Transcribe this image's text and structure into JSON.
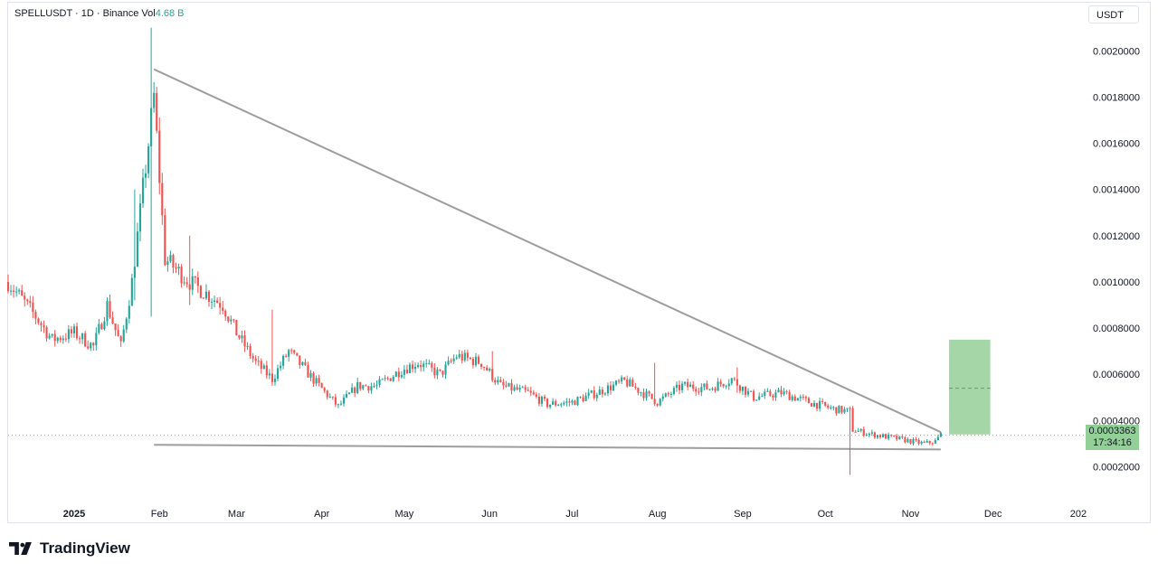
{
  "header": {
    "symbol_line": "SPELLUSDT · 1D · Binance",
    "vol_label": "Vol",
    "vol_value": "4.68 B"
  },
  "currency_button": "USDT",
  "last_price": {
    "price": "0.0003363",
    "countdown": "17:34:16"
  },
  "brand": {
    "name": "TradingView"
  },
  "colors": {
    "up": "#26a69a",
    "down": "#ef5350",
    "trendline": "#9e9e9e",
    "target_box": "#a5d6a7",
    "price_tag": "#92d098",
    "grid_text": "#131722"
  },
  "chart_data": {
    "type": "candlestick",
    "title": "",
    "xlabel": "",
    "ylabel": "",
    "y_axis_side": "right",
    "ylim": [
      3e-05,
      0.00222
    ],
    "y_ticks": [
      "0.0020000",
      "0.0018000",
      "0.0016000",
      "0.0014000",
      "0.0012000",
      "0.0010000",
      "0.0008000",
      "0.0006000",
      "0.0004000",
      "0.0002000"
    ],
    "x_tick_labels": [
      "2025",
      "Feb",
      "Mar",
      "Apr",
      "May",
      "Jun",
      "Jul",
      "Aug",
      "Sep",
      "Oct",
      "Nov",
      "Dec",
      "202"
    ],
    "x_start": "2024-12-08",
    "x_end": "2026-01-02",
    "last_price_line": 0.0003363,
    "anchors": [
      [
        "2024-12-08",
        0.001
      ],
      [
        "2024-12-18",
        0.00085
      ],
      [
        "2024-12-24",
        0.00075
      ],
      [
        "2025-01-01",
        0.00078
      ],
      [
        "2025-01-08",
        0.00072
      ],
      [
        "2025-01-13",
        0.0009
      ],
      [
        "2025-01-18",
        0.00072
      ],
      [
        "2025-01-22",
        0.001
      ],
      [
        "2025-01-26",
        0.0014
      ],
      [
        "2025-01-30",
        0.0018
      ],
      [
        "2025-02-03",
        0.0011
      ],
      [
        "2025-02-12",
        0.001
      ],
      [
        "2025-02-24",
        0.0009
      ],
      [
        "2025-03-01",
        0.00078
      ],
      [
        "2025-03-08",
        0.00065
      ],
      [
        "2025-03-14",
        0.00058
      ],
      [
        "2025-03-20",
        0.0007
      ],
      [
        "2025-03-31",
        0.00055
      ],
      [
        "2025-04-07",
        0.00046
      ],
      [
        "2025-04-14",
        0.00055
      ],
      [
        "2025-04-21",
        0.00055
      ],
      [
        "2025-04-30",
        0.00062
      ],
      [
        "2025-05-06",
        0.00065
      ],
      [
        "2025-05-14",
        0.0006
      ],
      [
        "2025-05-20",
        0.00068
      ],
      [
        "2025-05-29",
        0.00065
      ],
      [
        "2025-06-05",
        0.00055
      ],
      [
        "2025-06-15",
        0.00052
      ],
      [
        "2025-06-22",
        0.00047
      ],
      [
        "2025-07-01",
        0.00048
      ],
      [
        "2025-07-12",
        0.00053
      ],
      [
        "2025-07-20",
        0.00057
      ],
      [
        "2025-08-01",
        0.00048
      ],
      [
        "2025-08-10",
        0.00055
      ],
      [
        "2025-08-20",
        0.00054
      ],
      [
        "2025-08-28",
        0.00058
      ],
      [
        "2025-09-05",
        0.0005
      ],
      [
        "2025-09-15",
        0.00052
      ],
      [
        "2025-09-25",
        0.00048
      ],
      [
        "2025-10-04",
        0.00045
      ],
      [
        "2025-10-10",
        0.00044
      ],
      [
        "2025-10-11",
        0.00036
      ],
      [
        "2025-10-18",
        0.00034
      ],
      [
        "2025-10-28",
        0.00032
      ],
      [
        "2025-11-06",
        0.0003
      ],
      [
        "2025-11-10",
        0.00031
      ],
      [
        "2025-11-12",
        0.00034
      ]
    ],
    "wicks": [
      [
        "2025-01-29",
        0.0021,
        0.00085
      ],
      [
        "2025-01-23",
        0.0014,
        0.00092
      ],
      [
        "2025-02-12",
        0.0012,
        0.0009
      ],
      [
        "2025-03-14",
        0.00088,
        0.0006
      ],
      [
        "2025-06-02",
        0.0007,
        0.00062
      ],
      [
        "2025-07-31",
        0.00065,
        0.0005
      ],
      [
        "2025-08-30",
        0.00063,
        0.00052
      ],
      [
        "2025-10-10",
        0.00045,
        0.000165
      ]
    ],
    "trendlines": [
      {
        "name": "upper",
        "from": [
          "2025-01-30",
          0.00192
        ],
        "to": [
          "2025-11-12",
          0.00035
        ]
      },
      {
        "name": "lower",
        "from": [
          "2025-01-30",
          0.000295
        ],
        "to": [
          "2025-11-12",
          0.000275
        ]
      }
    ],
    "target_box": {
      "x0": "2025-11-15",
      "x1": "2025-11-30",
      "y0": 0.00034,
      "y1": 0.00075,
      "mid": 0.00054
    }
  }
}
